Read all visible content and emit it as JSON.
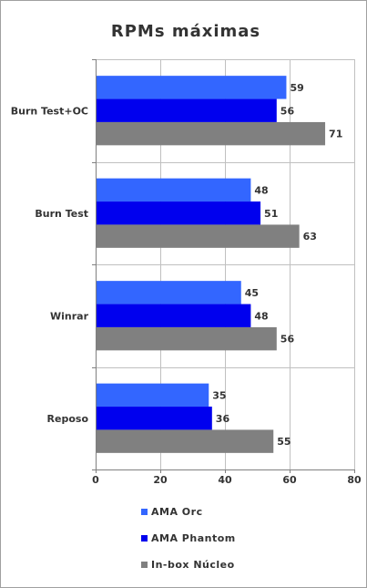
{
  "chart_data": {
    "type": "bar",
    "orientation": "horizontal",
    "title": "RPMs máximas",
    "categories": [
      "Burn Test+OC",
      "Burn Test",
      "Winrar",
      "Reposo"
    ],
    "series": [
      {
        "name": "AMA Orc",
        "color": "#3366ff",
        "values": [
          59,
          48,
          45,
          35
        ]
      },
      {
        "name": "AMA Phantom",
        "color": "#0000ee",
        "values": [
          56,
          51,
          48,
          36
        ]
      },
      {
        "name": "In-box Núcleo",
        "color": "#808080",
        "values": [
          71,
          63,
          56,
          55
        ]
      }
    ],
    "xlim": [
      0,
      80
    ],
    "xticks": [
      0,
      20,
      40,
      60,
      80
    ],
    "grid": true,
    "legend_position": "bottom"
  }
}
